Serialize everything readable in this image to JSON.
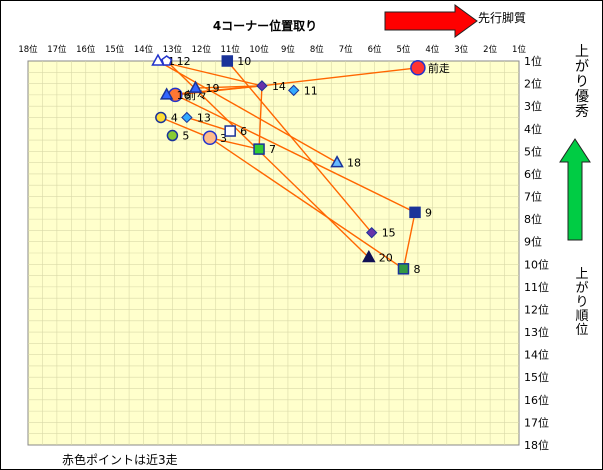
{
  "chart_data": {
    "type": "scatter",
    "title": "4コーナー位置取り",
    "top_arrow_label": "先行脚質",
    "right_top_label": "上がり優秀",
    "right_bottom_label": "上がり順位",
    "footnote": "赤色ポイントは近3走",
    "x_ticks": [
      "18位",
      "17位",
      "16位",
      "15位",
      "14位",
      "13位",
      "12位",
      "11位",
      "10位",
      "9位",
      "8位",
      "7位",
      "6位",
      "5位",
      "4位",
      "3位",
      "2位",
      "1位"
    ],
    "y_ticks": [
      "1位",
      "2位",
      "3位",
      "4位",
      "5位",
      "6位",
      "7位",
      "8位",
      "9位",
      "10位",
      "11位",
      "12位",
      "13位",
      "14位",
      "15位",
      "16位",
      "17位",
      "18位"
    ],
    "xlabel": "4コーナー位置",
    "ylabel": "上がり順位",
    "xlim": [
      18,
      1
    ],
    "ylim": [
      1,
      18
    ],
    "grid": true,
    "colors": {
      "plot_bg": "#ffffcc",
      "line": "#ff6600",
      "grid": "#d9d9a8",
      "top_arrow": "#ff0000",
      "right_arrow": "#00cc44"
    },
    "points": [
      {
        "label": "前走",
        "x": 4.5,
        "y": 1.3,
        "shape": "circle",
        "fill": "#ff3333",
        "stroke": "#2233cc",
        "highlight": true
      },
      {
        "label": "前々",
        "x": 12.9,
        "y": 2.5,
        "shape": "circle",
        "fill": "#ff7733",
        "stroke": "#2233cc",
        "highlight": true
      },
      {
        "label": "3",
        "x": 11.7,
        "y": 4.4,
        "shape": "circle",
        "fill": "#ffbb88",
        "stroke": "#2233cc",
        "highlight": true
      },
      {
        "label": "1",
        "x": 13.5,
        "y": 1.0,
        "shape": "triangle-outline",
        "fill": "#ffffff",
        "stroke": "#2233cc"
      },
      {
        "label": "12",
        "x": 13.2,
        "y": 1.0,
        "shape": "pentagon",
        "fill": "#ffffff",
        "stroke": "#2233cc"
      },
      {
        "label": "10",
        "x": 11.1,
        "y": 1.0,
        "shape": "square",
        "fill": "#1a3399",
        "stroke": "#1a3399"
      },
      {
        "label": "14",
        "x": 9.9,
        "y": 2.1,
        "shape": "diamond",
        "fill": "#6633aa",
        "stroke": "#1a3399"
      },
      {
        "label": "11",
        "x": 8.8,
        "y": 2.3,
        "shape": "diamond",
        "fill": "#33aaff",
        "stroke": "#1a3399"
      },
      {
        "label": "19",
        "x": 12.2,
        "y": 2.2,
        "shape": "triangle",
        "fill": "#3366ff",
        "stroke": "#1a3399"
      },
      {
        "label": "16",
        "x": 13.2,
        "y": 2.5,
        "shape": "triangle",
        "fill": "#3366ff",
        "stroke": "#1a3399"
      },
      {
        "label": "13",
        "x": 12.5,
        "y": 3.5,
        "shape": "diamond",
        "fill": "#33aaff",
        "stroke": "#1a3399"
      },
      {
        "label": "4",
        "x": 13.4,
        "y": 3.5,
        "shape": "circle",
        "fill": "#ffdd33",
        "stroke": "#1a3399"
      },
      {
        "label": "5",
        "x": 13.0,
        "y": 4.3,
        "shape": "circle",
        "fill": "#88cc33",
        "stroke": "#1a3399"
      },
      {
        "label": "6",
        "x": 11.0,
        "y": 4.1,
        "shape": "square",
        "fill": "#ffffff",
        "stroke": "#1a3399"
      },
      {
        "label": "7",
        "x": 10.0,
        "y": 4.9,
        "shape": "square",
        "fill": "#33cc33",
        "stroke": "#1a3399"
      },
      {
        "label": "18",
        "x": 7.3,
        "y": 5.5,
        "shape": "triangle",
        "fill": "#66bbff",
        "stroke": "#1a3399"
      },
      {
        "label": "9",
        "x": 4.6,
        "y": 7.7,
        "shape": "square",
        "fill": "#1a3399",
        "stroke": "#1a3399"
      },
      {
        "label": "15",
        "x": 6.1,
        "y": 8.6,
        "shape": "diamond",
        "fill": "#6633aa",
        "stroke": "#1a3399"
      },
      {
        "label": "20",
        "x": 6.2,
        "y": 9.7,
        "shape": "triangle",
        "fill": "#111155",
        "stroke": "#111155"
      },
      {
        "label": "8",
        "x": 5.0,
        "y": 10.2,
        "shape": "square",
        "fill": "#339944",
        "stroke": "#1a3399"
      }
    ],
    "segments": [
      [
        "前走",
        "14"
      ],
      [
        "14",
        "1"
      ],
      [
        "14",
        "前々"
      ],
      [
        "10",
        "15"
      ],
      [
        "1",
        "18"
      ],
      [
        "前々",
        "9"
      ],
      [
        "12",
        "20"
      ],
      [
        "9",
        "8"
      ],
      [
        "8",
        "3"
      ],
      [
        "3",
        "7"
      ],
      [
        "7",
        "14"
      ],
      [
        "6",
        "13"
      ],
      [
        "3",
        "4"
      ],
      [
        "16",
        "14"
      ],
      [
        "19",
        "14"
      ]
    ]
  }
}
